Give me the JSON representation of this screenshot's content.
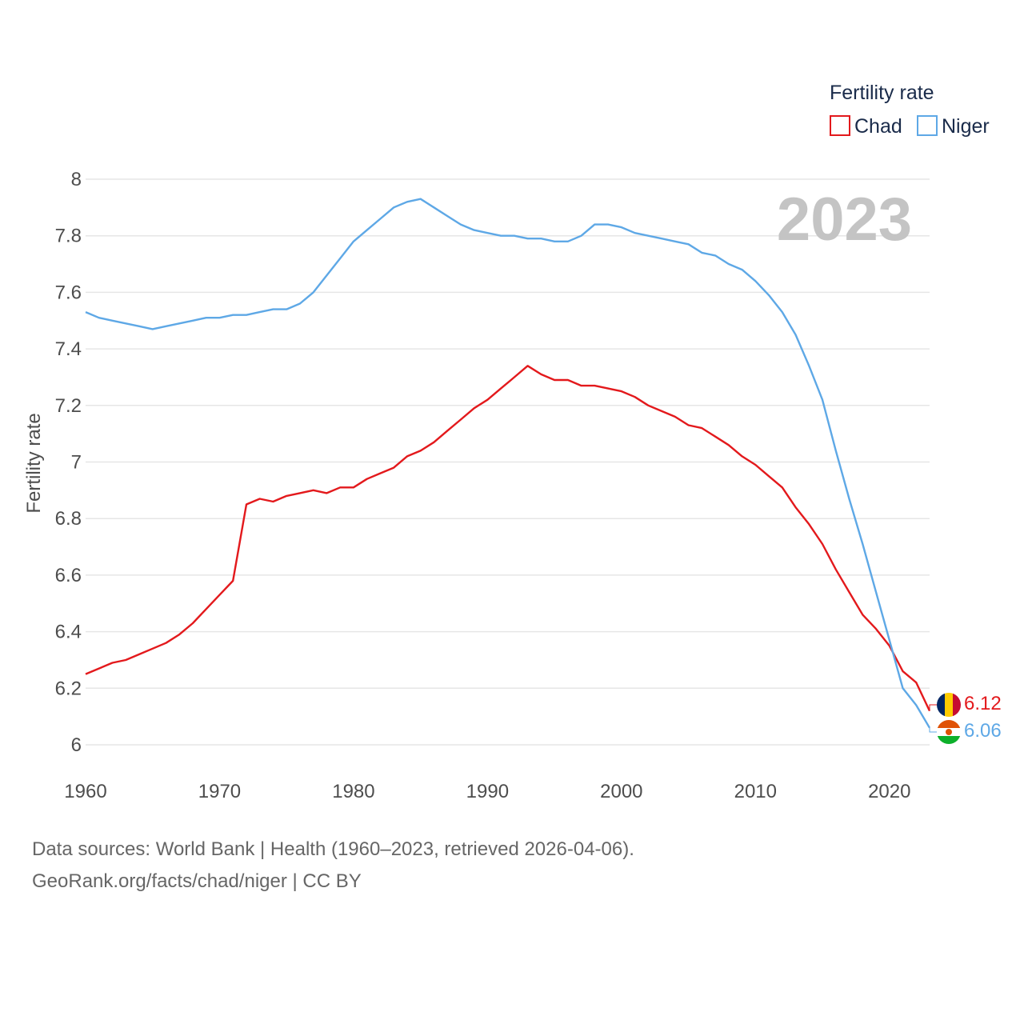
{
  "chart_data": {
    "type": "line",
    "year_label": "2023",
    "ylabel": "Fertility rate",
    "xlabel": "",
    "ylim": [
      6,
      8
    ],
    "xlim": [
      1960,
      2023
    ],
    "y_ticks": [
      "6",
      "6.2",
      "6.4",
      "6.6",
      "6.8",
      "7",
      "7.2",
      "7.4",
      "7.6",
      "7.8",
      "8"
    ],
    "y_tick_values": [
      6,
      6.2,
      6.4,
      6.6,
      6.8,
      7,
      7.2,
      7.4,
      7.6,
      7.8,
      8
    ],
    "x_ticks": [
      "1960",
      "1970",
      "1980",
      "1990",
      "2000",
      "2010",
      "2020"
    ],
    "x_tick_values": [
      1960,
      1970,
      1980,
      1990,
      2000,
      2010,
      2020
    ],
    "legend": {
      "title": "Fertility rate",
      "position": "top-right",
      "items": [
        {
          "name": "Chad",
          "color": "#e3191c"
        },
        {
          "name": "Niger",
          "color": "#5ea8e6"
        }
      ]
    },
    "x": [
      1960,
      1961,
      1962,
      1963,
      1964,
      1965,
      1966,
      1967,
      1968,
      1969,
      1970,
      1971,
      1972,
      1973,
      1974,
      1975,
      1976,
      1977,
      1978,
      1979,
      1980,
      1981,
      1982,
      1983,
      1984,
      1985,
      1986,
      1987,
      1988,
      1989,
      1990,
      1991,
      1992,
      1993,
      1994,
      1995,
      1996,
      1997,
      1998,
      1999,
      2000,
      2001,
      2002,
      2003,
      2004,
      2005,
      2006,
      2007,
      2008,
      2009,
      2010,
      2011,
      2012,
      2013,
      2014,
      2015,
      2016,
      2017,
      2018,
      2019,
      2020,
      2021,
      2022,
      2023
    ],
    "series": [
      {
        "name": "Chad",
        "color": "#e3191c",
        "end_label": "6.12",
        "values": [
          6.25,
          6.27,
          6.29,
          6.3,
          6.32,
          6.34,
          6.36,
          6.39,
          6.43,
          6.48,
          6.53,
          6.58,
          6.85,
          6.87,
          6.86,
          6.88,
          6.89,
          6.9,
          6.89,
          6.91,
          6.91,
          6.94,
          6.96,
          6.98,
          7.02,
          7.04,
          7.07,
          7.11,
          7.15,
          7.19,
          7.22,
          7.26,
          7.3,
          7.34,
          7.31,
          7.29,
          7.29,
          7.27,
          7.27,
          7.26,
          7.25,
          7.23,
          7.2,
          7.18,
          7.16,
          7.13,
          7.12,
          7.09,
          7.06,
          7.02,
          6.99,
          6.95,
          6.91,
          6.84,
          6.78,
          6.71,
          6.62,
          6.54,
          6.46,
          6.41,
          6.35,
          6.26,
          6.22,
          6.12
        ]
      },
      {
        "name": "Niger",
        "color": "#5ea8e6",
        "end_label": "6.06",
        "values": [
          7.53,
          7.51,
          7.5,
          7.49,
          7.48,
          7.47,
          7.48,
          7.49,
          7.5,
          7.51,
          7.51,
          7.52,
          7.52,
          7.53,
          7.54,
          7.54,
          7.56,
          7.6,
          7.66,
          7.72,
          7.78,
          7.82,
          7.86,
          7.9,
          7.92,
          7.93,
          7.9,
          7.87,
          7.84,
          7.82,
          7.81,
          7.8,
          7.8,
          7.79,
          7.79,
          7.78,
          7.78,
          7.8,
          7.84,
          7.84,
          7.83,
          7.81,
          7.8,
          7.79,
          7.78,
          7.77,
          7.74,
          7.73,
          7.7,
          7.68,
          7.64,
          7.59,
          7.53,
          7.45,
          7.34,
          7.22,
          7.04,
          6.87,
          6.71,
          6.54,
          6.37,
          6.2,
          6.14,
          6.06
        ]
      }
    ]
  },
  "footer": {
    "line1": "Data sources: World Bank | Health (1960–2023, retrieved 2026-04-06).",
    "line2": "GeoRank.org/facts/chad/niger | CC BY"
  }
}
